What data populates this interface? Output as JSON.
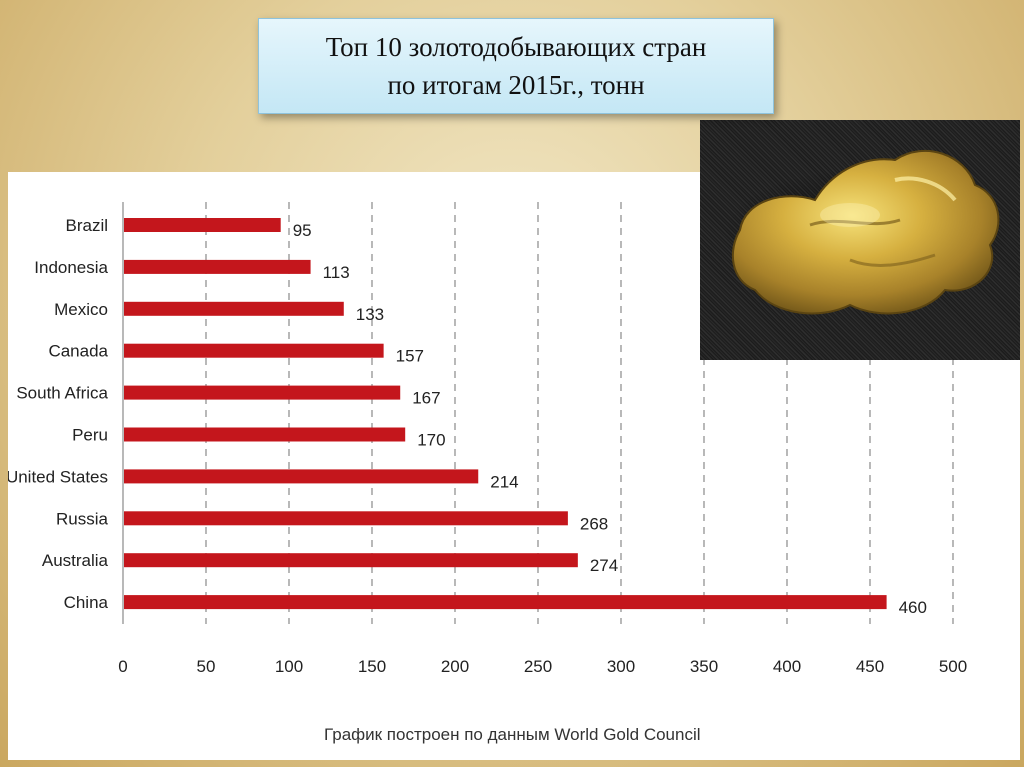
{
  "slide": {
    "title_line1": "Топ 10 золотодобывающих стран",
    "title_line2": "по итогам 2015г., тонн"
  },
  "photo": {
    "icon": "gold-nugget-photo"
  },
  "colors": {
    "bar": "#c4161c",
    "grid": "#8a8a8a",
    "background": "#e3cf9b",
    "title_box": "#d2eef8"
  },
  "chart_data": {
    "type": "bar",
    "orientation": "horizontal",
    "categories": [
      "Brazil",
      "Indonesia",
      "Mexico",
      "Canada",
      "South Africa",
      "Peru",
      "United States",
      "Russia",
      "Australia",
      "China"
    ],
    "values": [
      95,
      113,
      133,
      157,
      167,
      170,
      214,
      268,
      274,
      460
    ],
    "xlim": [
      0,
      500
    ],
    "xticks": [
      0,
      50,
      100,
      150,
      200,
      250,
      300,
      350,
      400,
      450,
      500
    ],
    "grid": "vertical-dashed",
    "source": "График построен по данным World Gold Council"
  }
}
